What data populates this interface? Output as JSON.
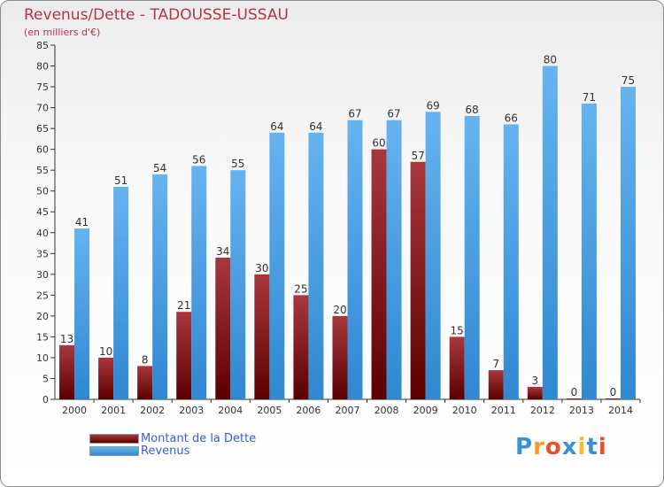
{
  "header": {
    "title": "Revenus/Dette - TADOUSSE-USSAU",
    "subtitle": "(en milliers d'€)"
  },
  "colors": {
    "dette_top": "#a8383d",
    "dette_bottom": "#5a0000",
    "revenus_top": "#66b3ef",
    "revenus_bottom": "#2f88d2",
    "title": "#b5334e",
    "legend_text": "#3b5bd9"
  },
  "chart_data": {
    "type": "bar",
    "categories": [
      "2000",
      "2001",
      "2002",
      "2003",
      "2004",
      "2005",
      "2006",
      "2007",
      "2008",
      "2009",
      "2010",
      "2011",
      "2012",
      "2013",
      "2014"
    ],
    "series": [
      {
        "name": "Montant de la Dette",
        "values": [
          13,
          10,
          8,
          21,
          34,
          30,
          25,
          20,
          60,
          57,
          15,
          7,
          3,
          0,
          0
        ]
      },
      {
        "name": "Revenus",
        "values": [
          41,
          51,
          54,
          56,
          55,
          64,
          64,
          67,
          67,
          69,
          68,
          66,
          80,
          71,
          75
        ]
      }
    ],
    "title": "Revenus/Dette - TADOUSSE-USSAU",
    "ylabel": "(en milliers d'€)",
    "ylim": [
      0,
      85
    ],
    "yticks": [
      0,
      5,
      10,
      15,
      20,
      25,
      30,
      35,
      40,
      45,
      50,
      55,
      60,
      65,
      70,
      75,
      80,
      85
    ],
    "grid": false,
    "legend_position": "bottom-left",
    "data_labels": true
  },
  "legend": {
    "dette_label": "Montant de la Dette",
    "revenus_label": "Revenus"
  },
  "logo": {
    "text": "Proxiti",
    "letter_colors": [
      "#3a8fd8",
      "#f0a020",
      "#e8502a",
      "#3a8fd8",
      "#f0c020",
      "#3a8fd8",
      "#e8502a"
    ]
  }
}
